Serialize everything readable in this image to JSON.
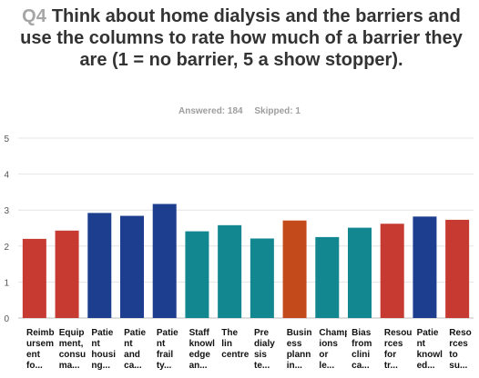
{
  "question": {
    "number": "Q4",
    "text": "Think about home dialysis and the barriers and use the columns to rate how much of a barrier they are (1 = no barrier, 5 a show stopper)."
  },
  "stats": {
    "answered": "Answered: 184",
    "skipped": "Skipped: 1"
  },
  "chart_data": {
    "type": "bar",
    "ylim": [
      0,
      5
    ],
    "yticks": [
      "0",
      "1",
      "2",
      "3",
      "4",
      "5"
    ],
    "grid": true,
    "categories": [
      "Reimb\nursem\nent\nfo...",
      "Equip\nment,\nconsu\nma...",
      "Patie\nnt\nhousi\nng...",
      "Patie\nnt\nand\nca...",
      "Patie\nnt\nfrail\nty...",
      "Staff\nknowl\nedge\nan...",
      "The\nlin\ncentre\n",
      "Pre\ndialy\nsis\nte...",
      "Busin\ness\nplann\nin...",
      "Champ\nions\nor\nle...",
      "Bias\nfrom\nclini\nca...",
      "Resou\nrces\nfor\ntr...",
      "Patie\nnt\nknowl\ned...",
      "Reso\nrces\nto\nsu..."
    ],
    "values": [
      2.2,
      2.43,
      2.92,
      2.84,
      3.17,
      2.41,
      2.58,
      2.21,
      2.71,
      2.25,
      2.51,
      2.62,
      2.82,
      2.73
    ],
    "colors": [
      "#c63a32",
      "#c63a32",
      "#1d3d8f",
      "#1d3d8f",
      "#1d3d8f",
      "#12878f",
      "#12878f",
      "#12878f",
      "#c34a1b",
      "#12878f",
      "#12878f",
      "#c63a32",
      "#1d3d8f",
      "#c63a32"
    ]
  }
}
